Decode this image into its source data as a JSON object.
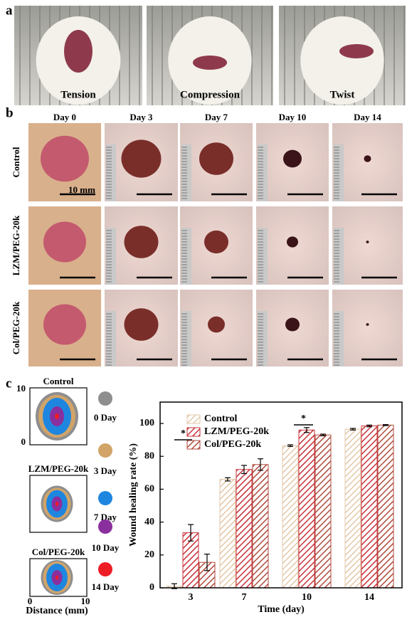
{
  "panel_a": {
    "label": "a",
    "captions": [
      "Tension",
      "Compression",
      "Twist"
    ]
  },
  "panel_b": {
    "label": "b",
    "days": [
      "Day 0",
      "Day 3",
      "Day 7",
      "Day 10",
      "Day 14"
    ],
    "groups": [
      "Control",
      "LZM/PEG-20k",
      "Col/PEG-20k"
    ],
    "scale_label": "10 mm"
  },
  "panel_c": {
    "label": "c",
    "traces": {
      "groups": [
        "Control",
        "LZM/PEG-20k",
        "Col/PEG-20k"
      ],
      "ticks": [
        "0",
        "10"
      ],
      "xlabel": "Distance (mm)",
      "legend": [
        {
          "label": "0 Day",
          "color": "#8e8e8e"
        },
        {
          "label": "3 Day",
          "color": "#d2a468"
        },
        {
          "label": "7 Day",
          "color": "#1f86e0"
        },
        {
          "label": "10 Day",
          "color": "#8a2f9e"
        },
        {
          "label": "14 Day",
          "color": "#ee1c25"
        }
      ]
    }
  },
  "chart_data": {
    "type": "bar",
    "ylabel": "Wound healing rate (%)",
    "xlabel": "Time (day)",
    "categories": [
      "3",
      "7",
      "10",
      "14"
    ],
    "series": [
      {
        "name": "Control",
        "color": "#e3c7a8",
        "values": [
          1,
          66,
          86.5,
          96.5
        ],
        "errors": [
          1.5,
          1,
          0.5,
          0.5
        ]
      },
      {
        "name": "LZM/PEG-20k",
        "color": "#c8313a",
        "values": [
          33.5,
          72,
          96,
          98.5
        ],
        "errors": [
          5,
          2.5,
          1.5,
          0.5
        ]
      },
      {
        "name": "Col/PEG-20k",
        "color": "#b04a3c",
        "values": [
          15.5,
          75,
          93,
          99
        ],
        "errors": [
          5,
          3.5,
          0.5,
          0.3
        ]
      }
    ],
    "ylim": [
      0,
      113
    ],
    "yticks": [
      0,
      20,
      40,
      60,
      80,
      100
    ],
    "annotations": [
      "*",
      "*"
    ],
    "hatch": true
  }
}
